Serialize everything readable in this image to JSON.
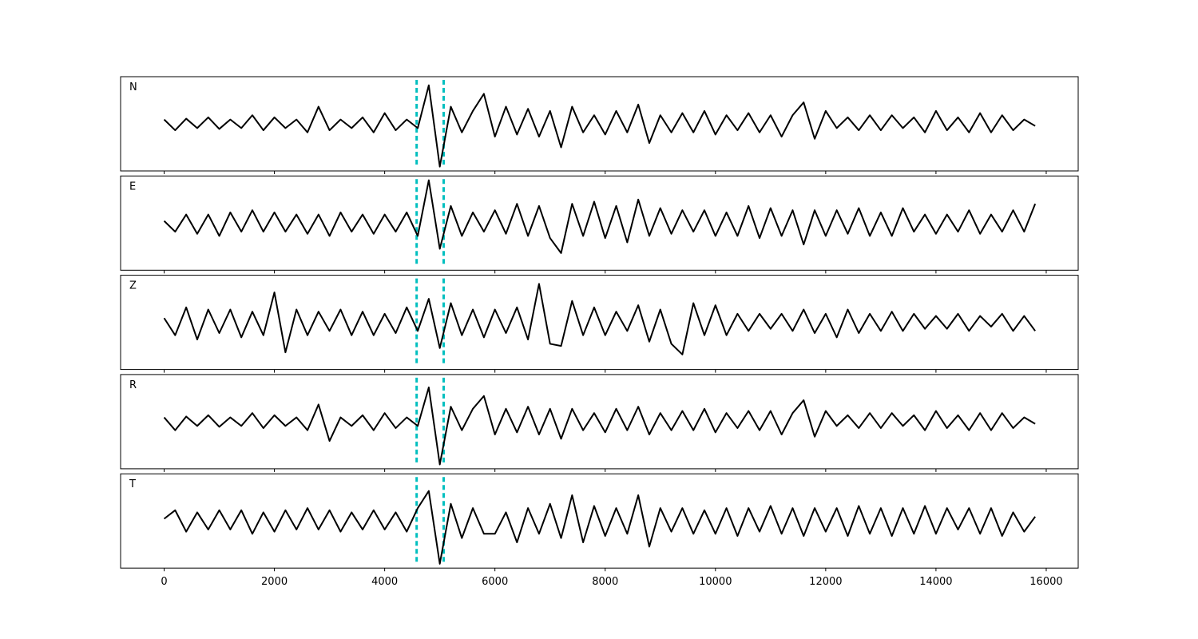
{
  "chart_data": [
    {
      "type": "line",
      "label": "N",
      "color": "#000000",
      "vline_color": "#00bfbf",
      "vlines": [
        4580,
        5070
      ],
      "xlim": [
        -790,
        16580
      ],
      "ylim": [
        -1.1,
        1.1
      ],
      "xticks": [
        0,
        2000,
        4000,
        6000,
        8000,
        10000,
        12000,
        14000,
        16000
      ],
      "show_xtick_labels": false,
      "x": [
        0,
        200,
        400,
        600,
        800,
        1000,
        1200,
        1400,
        1600,
        1800,
        2000,
        2200,
        2400,
        2600,
        2800,
        3000,
        3200,
        3400,
        3600,
        3800,
        4000,
        4200,
        4400,
        4600,
        4800,
        5000,
        5200,
        5400,
        5600,
        5800,
        6000,
        6200,
        6400,
        6600,
        6800,
        7000,
        7200,
        7400,
        7600,
        7800,
        8000,
        8200,
        8400,
        8600,
        8800,
        9000,
        9200,
        9400,
        9600,
        9800,
        10000,
        10200,
        10400,
        10600,
        10800,
        11000,
        11200,
        11400,
        11600,
        11800,
        12000,
        12200,
        12400,
        12600,
        12800,
        13000,
        13200,
        13400,
        13600,
        13800,
        14000,
        14200,
        14400,
        14600,
        14800,
        15000,
        15200,
        15400,
        15600,
        15800
      ],
      "values": [
        0.1,
        -0.15,
        0.12,
        -0.1,
        0.15,
        -0.12,
        0.1,
        -0.1,
        0.2,
        -0.15,
        0.15,
        -0.1,
        0.1,
        -0.2,
        0.4,
        -0.15,
        0.1,
        -0.1,
        0.15,
        -0.2,
        0.25,
        -0.15,
        0.1,
        -0.1,
        0.9,
        -1.0,
        0.4,
        -0.2,
        0.3,
        0.7,
        -0.3,
        0.4,
        -0.25,
        0.35,
        -0.3,
        0.3,
        -0.55,
        0.4,
        -0.2,
        0.2,
        -0.25,
        0.3,
        -0.2,
        0.45,
        -0.45,
        0.2,
        -0.2,
        0.25,
        -0.2,
        0.3,
        -0.25,
        0.2,
        -0.15,
        0.25,
        -0.2,
        0.2,
        -0.3,
        0.2,
        0.5,
        -0.35,
        0.3,
        -0.1,
        0.15,
        -0.15,
        0.2,
        -0.15,
        0.2,
        -0.1,
        0.15,
        -0.2,
        0.3,
        -0.15,
        0.15,
        -0.2,
        0.25,
        -0.2,
        0.2,
        -0.15,
        0.1,
        -0.05
      ]
    },
    {
      "type": "line",
      "label": "E",
      "color": "#000000",
      "vline_color": "#00bfbf",
      "vlines": [
        4580,
        5070
      ],
      "xlim": [
        -790,
        16580
      ],
      "ylim": [
        -1.1,
        1.1
      ],
      "xticks": [
        0,
        2000,
        4000,
        6000,
        8000,
        10000,
        12000,
        14000,
        16000
      ],
      "show_xtick_labels": false,
      "x": [
        0,
        200,
        400,
        600,
        800,
        1000,
        1200,
        1400,
        1600,
        1800,
        2000,
        2200,
        2400,
        2600,
        2800,
        3000,
        3200,
        3400,
        3600,
        3800,
        4000,
        4200,
        4400,
        4600,
        4800,
        5000,
        5200,
        5400,
        5600,
        5800,
        6000,
        6200,
        6400,
        6600,
        6800,
        7000,
        7200,
        7400,
        7600,
        7800,
        8000,
        8200,
        8400,
        8600,
        8800,
        9000,
        9200,
        9400,
        9600,
        9800,
        10000,
        10200,
        10400,
        10600,
        10800,
        11000,
        11200,
        11400,
        11600,
        11800,
        12000,
        12200,
        12400,
        12600,
        12800,
        13000,
        13200,
        13400,
        13600,
        13800,
        14000,
        14200,
        14400,
        14600,
        14800,
        15000,
        15200,
        15400,
        15600,
        15800
      ],
      "values": [
        0.05,
        -0.2,
        0.2,
        -0.25,
        0.2,
        -0.3,
        0.25,
        -0.2,
        0.3,
        -0.2,
        0.25,
        -0.2,
        0.2,
        -0.25,
        0.2,
        -0.3,
        0.25,
        -0.2,
        0.2,
        -0.25,
        0.2,
        -0.2,
        0.25,
        -0.3,
        1.0,
        -0.6,
        0.4,
        -0.3,
        0.25,
        -0.2,
        0.3,
        -0.25,
        0.45,
        -0.3,
        0.4,
        -0.35,
        -0.7,
        0.45,
        -0.3,
        0.5,
        -0.35,
        0.4,
        -0.45,
        0.55,
        -0.3,
        0.35,
        -0.25,
        0.3,
        -0.2,
        0.3,
        -0.3,
        0.25,
        -0.3,
        0.4,
        -0.35,
        0.35,
        -0.3,
        0.3,
        -0.5,
        0.3,
        -0.3,
        0.3,
        -0.25,
        0.35,
        -0.3,
        0.25,
        -0.3,
        0.35,
        -0.2,
        0.2,
        -0.25,
        0.2,
        -0.2,
        0.3,
        -0.25,
        0.2,
        -0.2,
        0.3,
        -0.2,
        0.45
      ]
    },
    {
      "type": "line",
      "label": "Z",
      "color": "#000000",
      "vline_color": "#00bfbf",
      "vlines": [
        4580,
        5070
      ],
      "xlim": [
        -790,
        16580
      ],
      "ylim": [
        -1.1,
        1.1
      ],
      "xticks": [
        0,
        2000,
        4000,
        6000,
        8000,
        10000,
        12000,
        14000,
        16000
      ],
      "show_xtick_labels": false,
      "x": [
        0,
        200,
        400,
        600,
        800,
        1000,
        1200,
        1400,
        1600,
        1800,
        2000,
        2200,
        2400,
        2600,
        2800,
        3000,
        3200,
        3400,
        3600,
        3800,
        4000,
        4200,
        4400,
        4600,
        4800,
        5000,
        5200,
        5400,
        5600,
        5800,
        6000,
        6200,
        6400,
        6600,
        6800,
        7000,
        7200,
        7400,
        7600,
        7800,
        8000,
        8200,
        8400,
        8600,
        8800,
        9000,
        9200,
        9400,
        9600,
        9800,
        10000,
        10200,
        10400,
        10600,
        10800,
        11000,
        11200,
        11400,
        11600,
        11800,
        12000,
        12200,
        12400,
        12600,
        12800,
        13000,
        13200,
        13400,
        13600,
        13800,
        14000,
        14200,
        14400,
        14600,
        14800,
        15000,
        15200,
        15400,
        15600,
        15800
      ],
      "values": [
        0.1,
        -0.3,
        0.35,
        -0.4,
        0.3,
        -0.25,
        0.3,
        -0.35,
        0.25,
        -0.3,
        0.7,
        -0.7,
        0.3,
        -0.3,
        0.25,
        -0.2,
        0.3,
        -0.3,
        0.25,
        -0.3,
        0.2,
        -0.25,
        0.35,
        -0.2,
        0.55,
        -0.6,
        0.45,
        -0.3,
        0.3,
        -0.35,
        0.3,
        -0.25,
        0.35,
        -0.4,
        0.9,
        -0.5,
        -0.55,
        0.5,
        -0.3,
        0.35,
        -0.3,
        0.25,
        -0.2,
        0.4,
        -0.45,
        0.3,
        -0.5,
        -0.75,
        0.45,
        -0.3,
        0.4,
        -0.3,
        0.2,
        -0.2,
        0.2,
        -0.15,
        0.2,
        -0.2,
        0.3,
        -0.25,
        0.2,
        -0.35,
        0.3,
        -0.25,
        0.2,
        -0.2,
        0.25,
        -0.2,
        0.2,
        -0.15,
        0.15,
        -0.15,
        0.2,
        -0.2,
        0.15,
        -0.1,
        0.2,
        -0.2,
        0.15,
        -0.2
      ]
    },
    {
      "type": "line",
      "label": "R",
      "color": "#000000",
      "vline_color": "#00bfbf",
      "vlines": [
        4580,
        5070
      ],
      "xlim": [
        -790,
        16580
      ],
      "ylim": [
        -1.1,
        1.1
      ],
      "xticks": [
        0,
        2000,
        4000,
        6000,
        8000,
        10000,
        12000,
        14000,
        16000
      ],
      "show_xtick_labels": false,
      "x": [
        0,
        200,
        400,
        600,
        800,
        1000,
        1200,
        1400,
        1600,
        1800,
        2000,
        2200,
        2400,
        2600,
        2800,
        3000,
        3200,
        3400,
        3600,
        3800,
        4000,
        4200,
        4400,
        4600,
        4800,
        5000,
        5200,
        5400,
        5600,
        5800,
        6000,
        6200,
        6400,
        6600,
        6800,
        7000,
        7200,
        7400,
        7600,
        7800,
        8000,
        8200,
        8400,
        8600,
        8800,
        9000,
        9200,
        9400,
        9600,
        9800,
        10000,
        10200,
        10400,
        10600,
        10800,
        11000,
        11200,
        11400,
        11600,
        11800,
        12000,
        12200,
        12400,
        12600,
        12800,
        13000,
        13200,
        13400,
        13600,
        13800,
        14000,
        14200,
        14400,
        14600,
        14800,
        15000,
        15200,
        15400,
        15600,
        15800
      ],
      "values": [
        0.1,
        -0.2,
        0.12,
        -0.1,
        0.15,
        -0.12,
        0.1,
        -0.1,
        0.2,
        -0.15,
        0.15,
        -0.1,
        0.1,
        -0.2,
        0.4,
        -0.45,
        0.1,
        -0.1,
        0.15,
        -0.2,
        0.2,
        -0.15,
        0.1,
        -0.1,
        0.8,
        -1.0,
        0.35,
        -0.2,
        0.3,
        0.6,
        -0.3,
        0.3,
        -0.25,
        0.35,
        -0.3,
        0.3,
        -0.4,
        0.3,
        -0.2,
        0.2,
        -0.25,
        0.3,
        -0.2,
        0.35,
        -0.3,
        0.2,
        -0.2,
        0.25,
        -0.2,
        0.3,
        -0.25,
        0.2,
        -0.15,
        0.25,
        -0.2,
        0.25,
        -0.3,
        0.2,
        0.5,
        -0.35,
        0.25,
        -0.1,
        0.15,
        -0.15,
        0.2,
        -0.15,
        0.2,
        -0.1,
        0.15,
        -0.2,
        0.25,
        -0.15,
        0.15,
        -0.2,
        0.2,
        -0.2,
        0.2,
        -0.15,
        0.1,
        -0.05
      ]
    },
    {
      "type": "line",
      "label": "T",
      "color": "#000000",
      "vline_color": "#00bfbf",
      "vlines": [
        4580,
        5070
      ],
      "xlim": [
        -790,
        16580
      ],
      "ylim": [
        -1.1,
        1.1
      ],
      "xticks": [
        0,
        2000,
        4000,
        6000,
        8000,
        10000,
        12000,
        14000,
        16000
      ],
      "show_xtick_labels": true,
      "x": [
        0,
        200,
        400,
        600,
        800,
        1000,
        1200,
        1400,
        1600,
        1800,
        2000,
        2200,
        2400,
        2600,
        2800,
        3000,
        3200,
        3400,
        3600,
        3800,
        4000,
        4200,
        4400,
        4600,
        4800,
        5000,
        5200,
        5400,
        5600,
        5800,
        6000,
        6200,
        6400,
        6600,
        6800,
        7000,
        7200,
        7400,
        7600,
        7800,
        8000,
        8200,
        8400,
        8600,
        8800,
        9000,
        9200,
        9400,
        9600,
        9800,
        10000,
        10200,
        10400,
        10600,
        10800,
        11000,
        11200,
        11400,
        11600,
        11800,
        12000,
        12200,
        12400,
        12600,
        12800,
        13000,
        13200,
        13400,
        13600,
        13800,
        14000,
        14200,
        14400,
        14600,
        14800,
        15000,
        15200,
        15400,
        15600,
        15800
      ],
      "values": [
        0.05,
        0.25,
        -0.25,
        0.2,
        -0.2,
        0.25,
        -0.2,
        0.25,
        -0.3,
        0.2,
        -0.25,
        0.25,
        -0.2,
        0.3,
        -0.2,
        0.25,
        -0.25,
        0.2,
        -0.2,
        0.25,
        -0.2,
        0.2,
        -0.25,
        0.3,
        0.7,
        -1.0,
        0.4,
        -0.4,
        0.3,
        -0.3,
        -0.3,
        0.2,
        -0.5,
        0.3,
        -0.3,
        0.4,
        -0.4,
        0.6,
        -0.5,
        0.35,
        -0.35,
        0.3,
        -0.3,
        0.6,
        -0.6,
        0.3,
        -0.25,
        0.3,
        -0.3,
        0.25,
        -0.3,
        0.3,
        -0.35,
        0.3,
        -0.25,
        0.35,
        -0.3,
        0.3,
        -0.35,
        0.3,
        -0.25,
        0.3,
        -0.35,
        0.35,
        -0.3,
        0.3,
        -0.35,
        0.3,
        -0.3,
        0.35,
        -0.3,
        0.3,
        -0.2,
        0.3,
        -0.3,
        0.3,
        -0.35,
        0.2,
        -0.25,
        0.1
      ]
    }
  ]
}
